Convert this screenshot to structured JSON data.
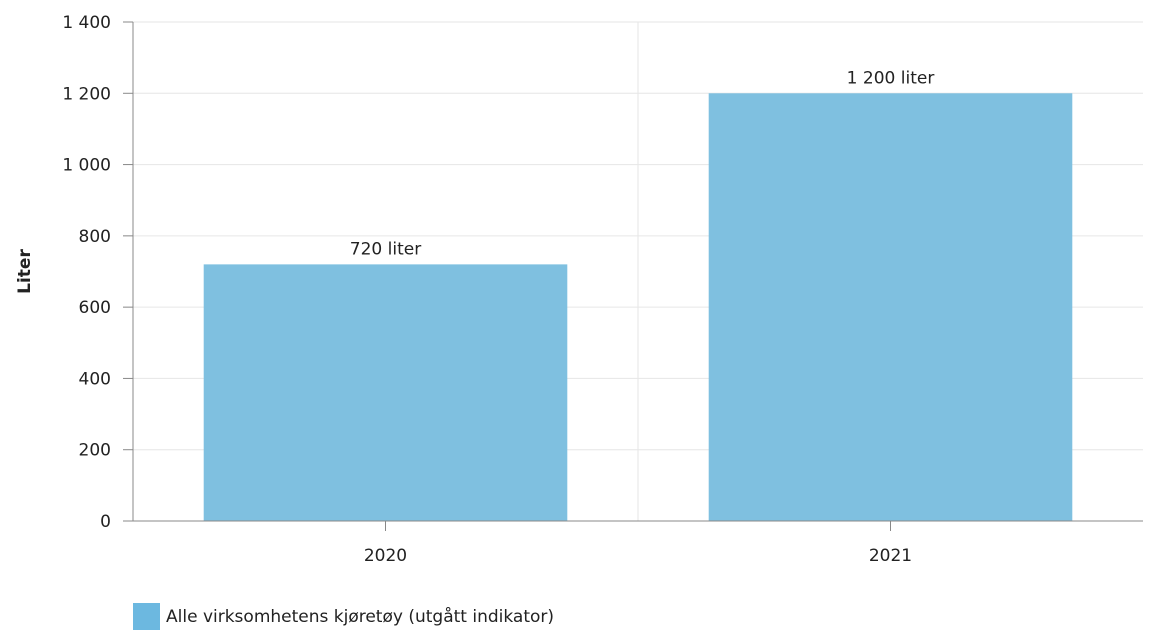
{
  "chart_data": {
    "type": "bar",
    "categories": [
      "2020",
      "2021"
    ],
    "series": [
      {
        "name": "Alle virksomhetens kjøretøy (utgått indikator)",
        "values": [
          720,
          1200
        ],
        "data_labels": [
          "720 liter",
          "1 200 liter"
        ]
      }
    ],
    "ylabel": "Liter",
    "xlabel": "",
    "ylim": [
      0,
      1400
    ],
    "yticks": [
      0,
      200,
      400,
      600,
      800,
      1000,
      1200,
      1400
    ],
    "ytick_labels": [
      "0",
      "200",
      "400",
      "600",
      "800",
      "1 000",
      "1 200",
      "1 400"
    ],
    "grid": true,
    "legend_position": "bottom-left",
    "colors": {
      "bar": "#7fc0e0",
      "legend_swatch": "#6cb8e0",
      "grid": "#e6e6e6",
      "axis": "#888888"
    }
  }
}
